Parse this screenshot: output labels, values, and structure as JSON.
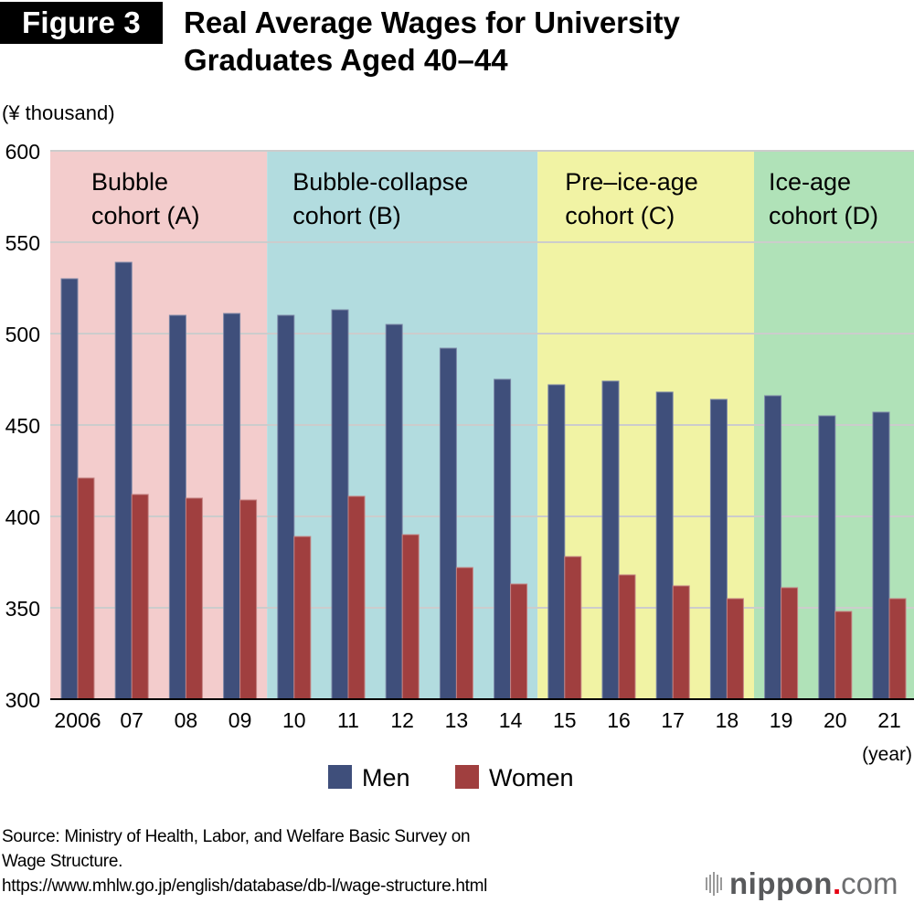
{
  "figure_label": "Figure 3",
  "title_line1": "Real Average Wages for University",
  "title_line2": "Graduates Aged 40–44",
  "source_lines": [
    "Source: Ministry of Health, Labor, and Welfare Basic Survey on",
    "Wage Structure.",
    "https://www.mhlw.go.jp/english/database/db-l/wage-structure.html"
  ],
  "logo": {
    "brand": "nippon",
    "dot": ".",
    "suffix": "com"
  },
  "chart_data": {
    "type": "bar",
    "title": "Real Average Wages for University Graduates Aged 40–44",
    "xlabel": "(year)",
    "ylabel": "(¥ thousand)",
    "ylim": [
      300,
      600
    ],
    "yticks": [
      300,
      350,
      400,
      450,
      500,
      550,
      600
    ],
    "grid": true,
    "legend_position": "bottom-center",
    "categories": [
      "2006",
      "07",
      "08",
      "09",
      "10",
      "11",
      "12",
      "13",
      "14",
      "15",
      "16",
      "17",
      "18",
      "19",
      "20",
      "21"
    ],
    "series": [
      {
        "name": "Men",
        "color": "#3f4f7b",
        "values": [
          530,
          539,
          510,
          511,
          510,
          513,
          505,
          492,
          475,
          472,
          474,
          468,
          464,
          466,
          455,
          457
        ]
      },
      {
        "name": "Women",
        "color": "#a03f3f",
        "values": [
          421,
          412,
          410,
          409,
          389,
          411,
          390,
          372,
          363,
          378,
          368,
          362,
          355,
          361,
          348,
          355
        ]
      }
    ],
    "cohorts": [
      {
        "line1": "Bubble",
        "line2": "cohort (A)",
        "start_index": 0,
        "end_index": 3,
        "color": "#f3cccc"
      },
      {
        "line1": "Bubble-collapse",
        "line2": "cohort (B)",
        "start_index": 4,
        "end_index": 8,
        "color": "#b2dcdf"
      },
      {
        "line1": "Pre–ice-age",
        "line2": "cohort (C)",
        "start_index": 9,
        "end_index": 12,
        "color": "#f1f3a4"
      },
      {
        "line1": "Ice-age",
        "line2": "cohort (D)",
        "start_index": 13,
        "end_index": 15,
        "color": "#b0e2b8"
      }
    ]
  }
}
